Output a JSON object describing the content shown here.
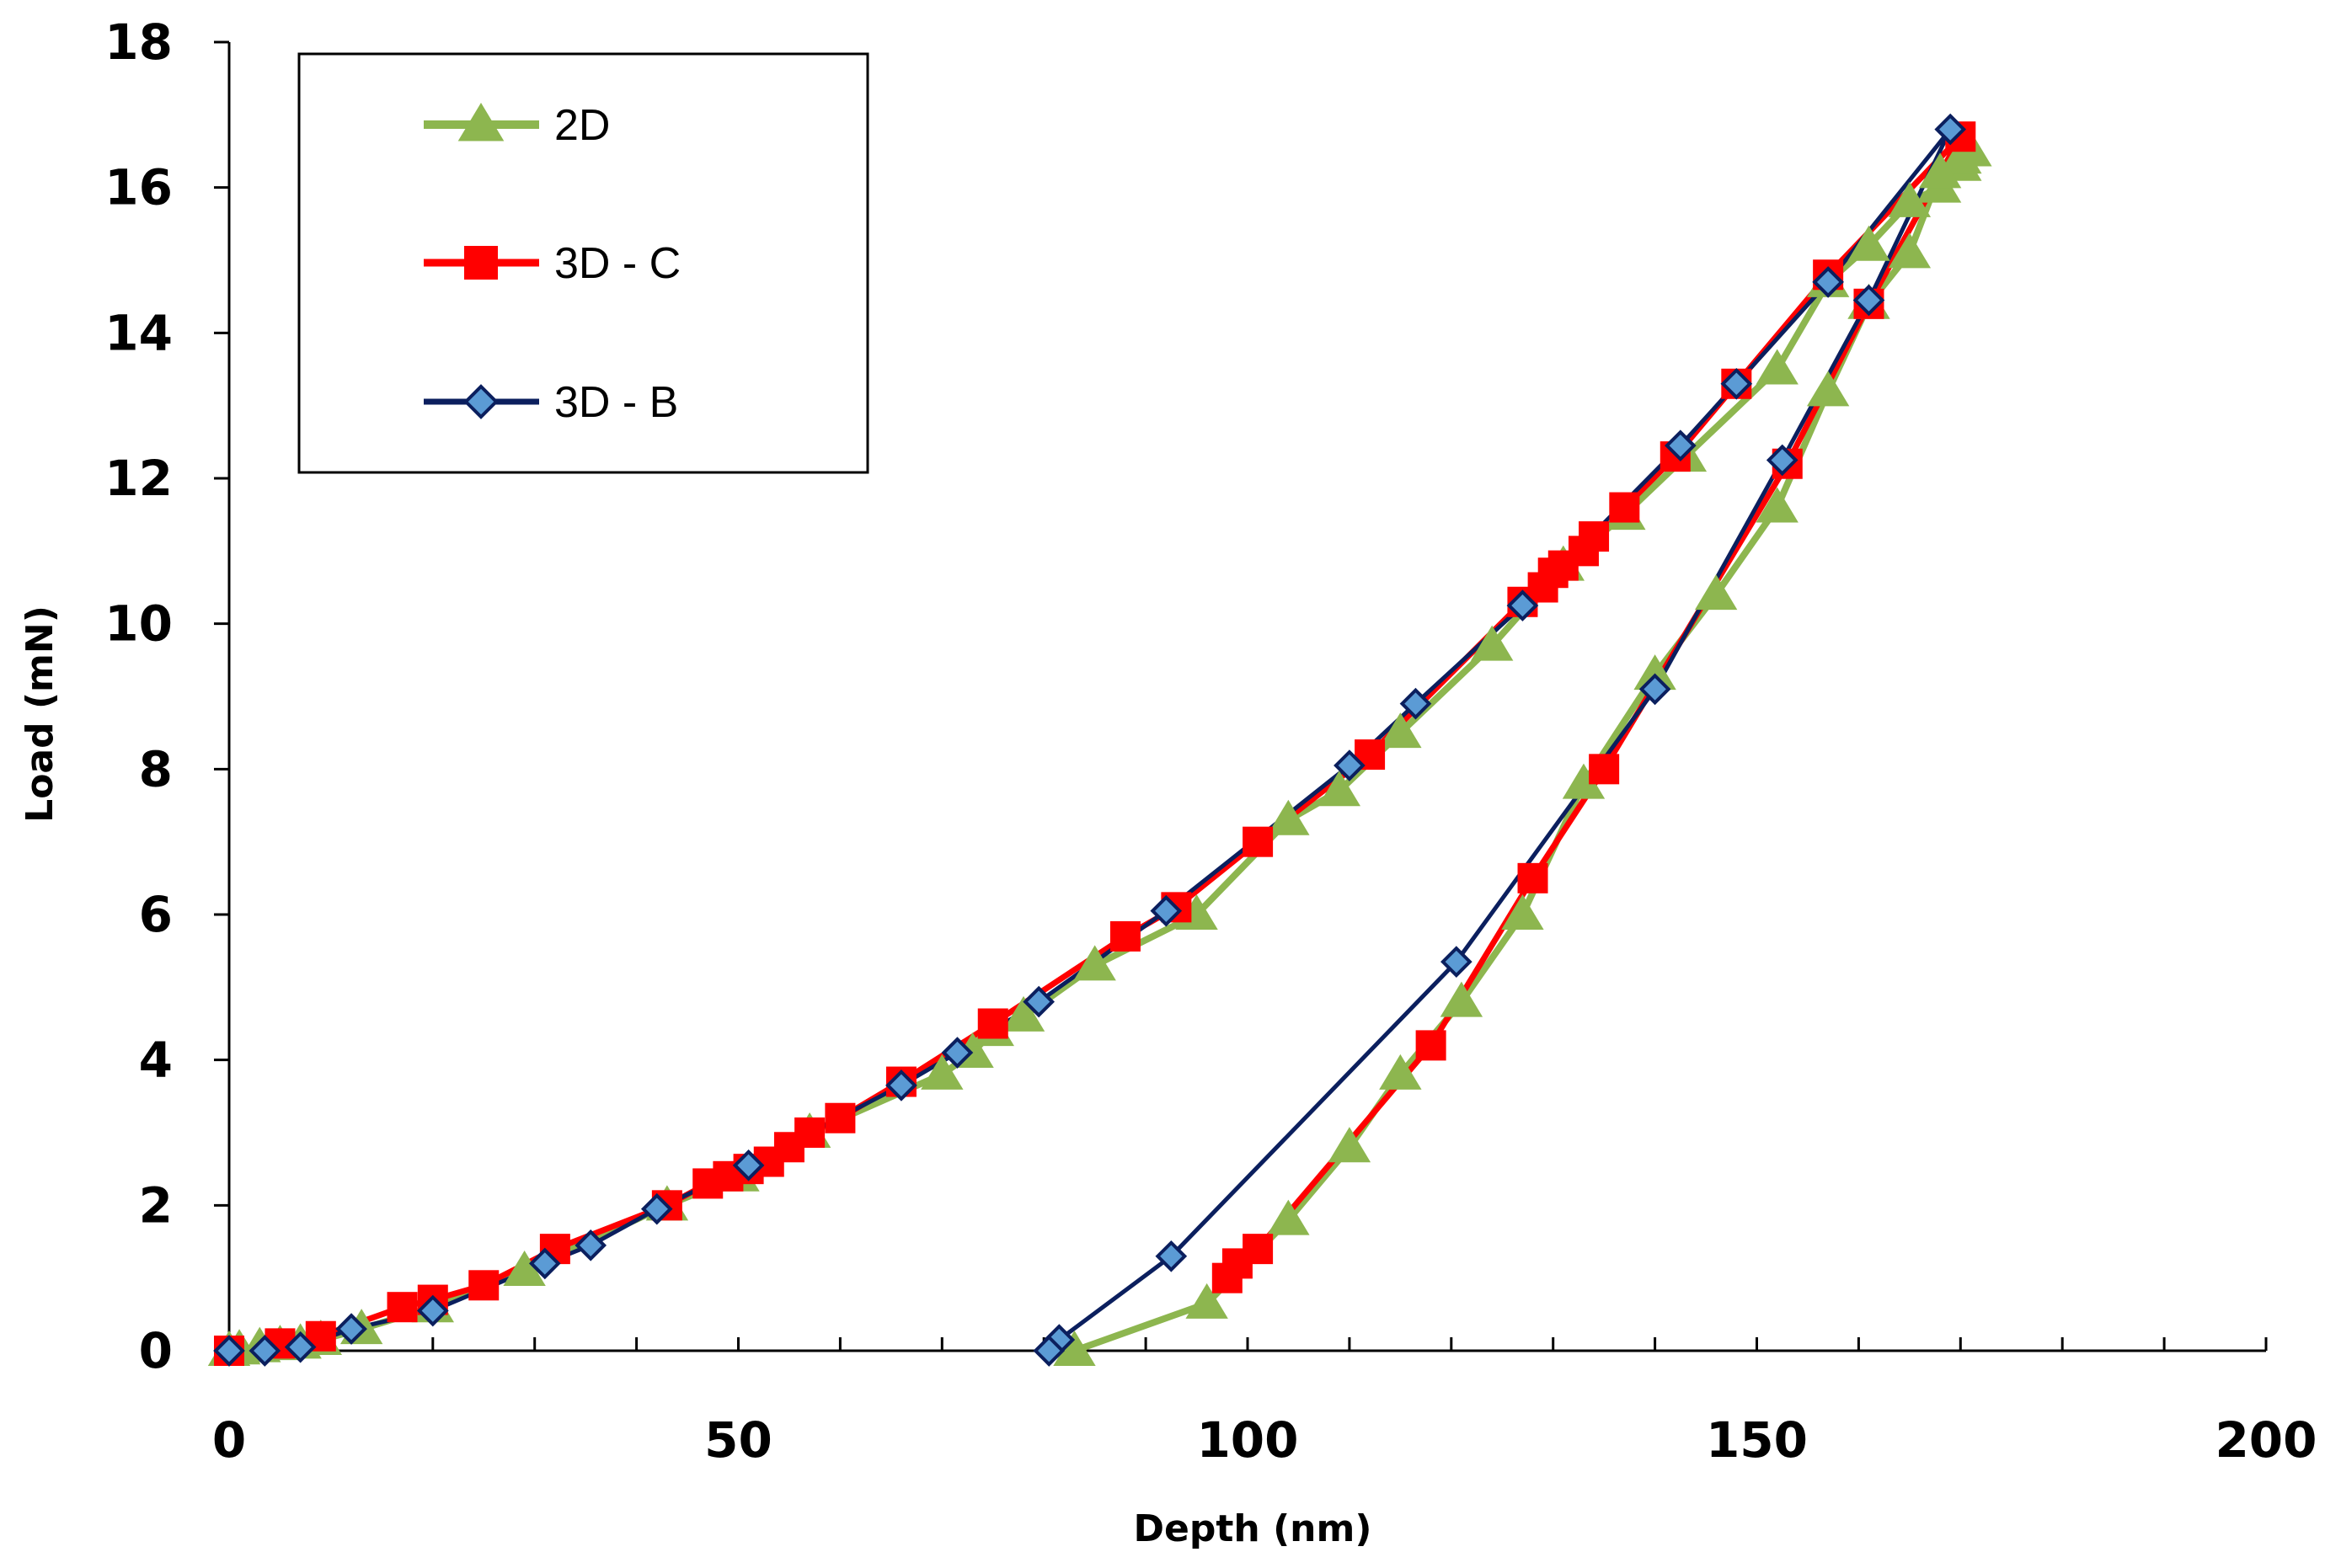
{
  "chart_data": {
    "type": "line",
    "title": "",
    "xlabel": "Depth (nm)",
    "ylabel": "Load (mN)",
    "xlim": [
      0,
      200
    ],
    "ylim": [
      0,
      18
    ],
    "xticks": [
      0,
      50,
      100,
      150,
      200
    ],
    "yticks": [
      0,
      2,
      4,
      6,
      8,
      10,
      12,
      14,
      16,
      18
    ],
    "grid": false,
    "legend_position": "top-left",
    "series": [
      {
        "name": "2D",
        "color": "#8db64f",
        "marker": "triangle",
        "x": [
          0,
          1,
          3,
          5,
          7,
          9,
          13,
          20,
          29,
          43,
          50,
          57,
          70,
          73,
          75,
          78,
          85,
          95,
          104,
          109,
          115,
          124,
          131,
          137,
          143,
          152,
          157,
          161,
          165,
          168,
          170,
          171,
          170,
          168,
          165,
          161,
          157,
          152,
          146,
          140,
          133,
          127,
          121,
          115,
          110,
          104,
          96,
          83
        ],
        "y": [
          0,
          0.02,
          0.05,
          0.08,
          0.1,
          0.15,
          0.3,
          0.6,
          1.1,
          2.0,
          2.4,
          3.0,
          3.8,
          4.1,
          4.4,
          4.6,
          5.3,
          6.0,
          7.3,
          7.7,
          8.5,
          9.7,
          10.8,
          11.5,
          12.3,
          13.5,
          14.7,
          15.2,
          15.8,
          16.0,
          16.3,
          16.5,
          16.4,
          16.2,
          15.1,
          14.4,
          13.2,
          11.6,
          10.4,
          9.3,
          7.8,
          6.0,
          4.8,
          3.8,
          2.8,
          1.8,
          0.65,
          0
        ]
      },
      {
        "name": "3D - C",
        "color": "#ff0000",
        "marker": "square",
        "x": [
          0,
          5,
          9,
          17,
          20,
          25,
          32,
          43,
          47,
          49,
          51,
          53,
          55,
          57,
          60,
          66,
          75,
          88,
          93,
          101,
          112,
          127,
          129,
          130,
          131,
          133,
          134,
          137,
          142,
          148,
          157,
          170,
          161,
          153,
          135,
          128,
          118,
          101,
          99,
          98
        ],
        "y": [
          0,
          0.1,
          0.2,
          0.6,
          0.7,
          0.9,
          1.4,
          2.0,
          2.3,
          2.4,
          2.5,
          2.6,
          2.8,
          3.0,
          3.2,
          3.7,
          4.5,
          5.7,
          6.1,
          7.0,
          8.2,
          10.3,
          10.5,
          10.7,
          10.8,
          11.0,
          11.2,
          11.6,
          12.3,
          13.3,
          14.8,
          16.7,
          14.4,
          12.2,
          8.0,
          6.5,
          4.2,
          1.4,
          1.2,
          1.0
        ]
      },
      {
        "name": "3D - B",
        "color": "#0b1f5e",
        "marker": "diamond",
        "x": [
          0,
          3.5,
          7,
          12,
          20,
          31,
          35.5,
          42,
          51,
          66,
          71.5,
          79.5,
          92,
          110,
          116.5,
          127,
          142.5,
          148,
          157,
          169,
          161,
          152.5,
          140,
          120.5,
          92.5,
          81.5,
          80.5
        ],
        "y": [
          0,
          0,
          0.05,
          0.3,
          0.55,
          1.2,
          1.45,
          1.95,
          2.55,
          3.65,
          4.1,
          4.8,
          6.05,
          8.05,
          8.9,
          10.25,
          12.45,
          13.3,
          14.7,
          16.8,
          14.45,
          12.25,
          9.1,
          5.35,
          1.3,
          0.15,
          0
        ]
      }
    ]
  }
}
